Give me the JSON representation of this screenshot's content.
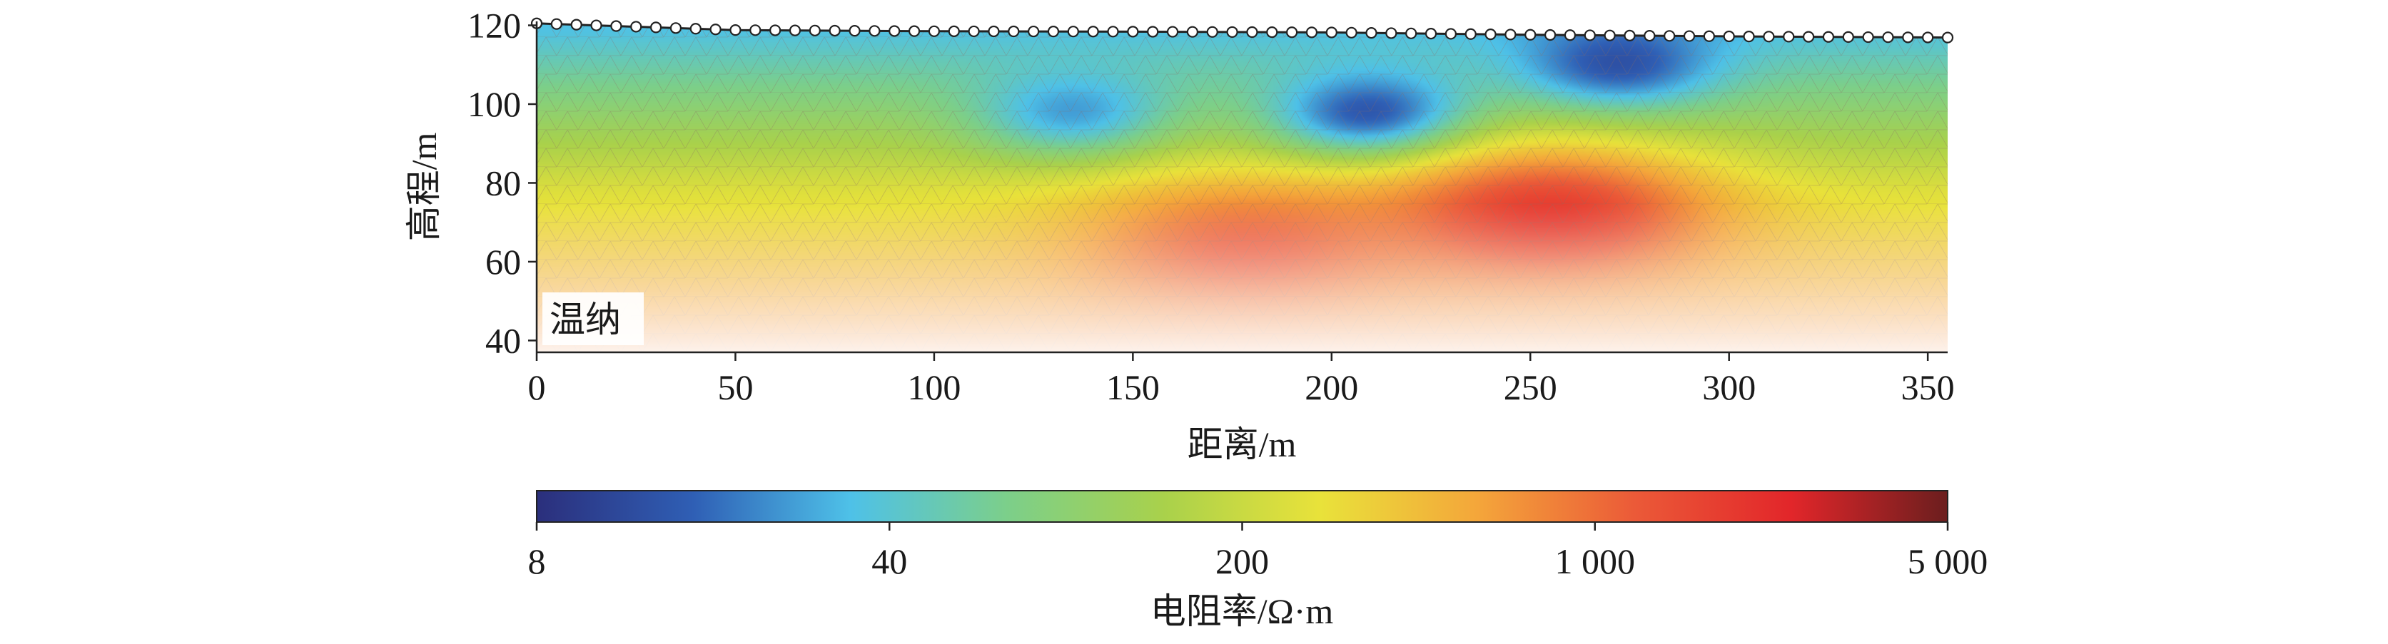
{
  "chart_data": {
    "type": "heatmap",
    "title": "",
    "xlabel": "距离/m",
    "ylabel": "高程/m",
    "xlim": [
      0,
      355
    ],
    "ylim": [
      37,
      121
    ],
    "x_ticks": [
      0,
      50,
      100,
      150,
      200,
      250,
      300,
      350
    ],
    "y_ticks": [
      40,
      60,
      80,
      100,
      120
    ],
    "annotation": "温纳",
    "surface_profile": {
      "x": [
        0,
        50,
        100,
        150,
        200,
        250,
        300,
        355
      ],
      "y": [
        120.5,
        118.8,
        118.5,
        118.4,
        118.2,
        117.6,
        117.2,
        116.9
      ],
      "electrode_count": 72
    },
    "colorbar": {
      "label": "电阻率/Ω·m",
      "scale": "log",
      "range": [
        8,
        5000
      ],
      "ticks": [
        8,
        40,
        200,
        1000,
        5000
      ],
      "tick_labels": [
        "8",
        "40",
        "200",
        "1 000",
        "5 000"
      ],
      "colormap": [
        "#2b2f7c",
        "#2f5fb5",
        "#4ec1e8",
        "#7ccf8a",
        "#a9d14b",
        "#e9e23a",
        "#f4a63a",
        "#eb5a38",
        "#e2262a",
        "#6b1e1e"
      ]
    },
    "anomalies": [
      {
        "kind": "low resistivity",
        "x": 210,
        "y": 97,
        "value": 8
      },
      {
        "kind": "low resistivity",
        "x": 272,
        "y": 110,
        "value": 10
      },
      {
        "kind": "low resistivity",
        "x": 135,
        "y": 98,
        "value": 20
      },
      {
        "kind": "high resistivity",
        "x": 178,
        "y": 63,
        "value": 1500
      },
      {
        "kind": "high resistivity",
        "x": 255,
        "y": 72,
        "value": 2500
      }
    ]
  }
}
